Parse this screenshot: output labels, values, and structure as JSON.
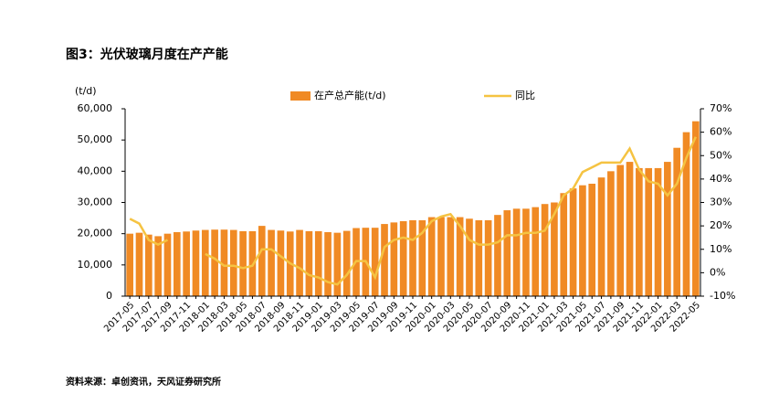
{
  "chart_data": {
    "type": "bar-line",
    "title": "图3：光伏玻璃月度在产产能",
    "y_label": "(t/d)",
    "source": "资料来源：卓创资讯，天风证券研究所",
    "categories": [
      "2017-05",
      null,
      "2017-07",
      null,
      "2017-09",
      null,
      "2017-11",
      null,
      "2018-01",
      null,
      "2018-03",
      null,
      "2018-05",
      null,
      "2018-07",
      null,
      "2018-09",
      null,
      "2018-11",
      null,
      "2019-01",
      null,
      "2019-03",
      null,
      "2019-05",
      null,
      "2019-07",
      null,
      "2019-09",
      null,
      "2019-11",
      null,
      "2020-01",
      null,
      "2020-03",
      null,
      "2020-05",
      null,
      "2020-07",
      null,
      "2020-09",
      null,
      "2020-11",
      null,
      "2021-01",
      null,
      "2021-03",
      null,
      "2021-05",
      null,
      "2021-07",
      null,
      "2021-09",
      null,
      "2021-11",
      null,
      "2022-01",
      null,
      "2022-03",
      null,
      "2022-05"
    ],
    "series": [
      {
        "name": "在产总产能(t/d)",
        "kind": "bar",
        "color": "#f08a24",
        "values": [
          20000,
          20300,
          19700,
          19200,
          20000,
          20500,
          20700,
          21000,
          21200,
          21300,
          21300,
          21200,
          20800,
          20800,
          22500,
          21200,
          21000,
          20700,
          21200,
          20800,
          20800,
          20500,
          20300,
          20900,
          21800,
          21900,
          21900,
          23100,
          23600,
          24000,
          24300,
          24300,
          25300,
          25300,
          25300,
          25300,
          24800,
          24300,
          24300,
          26000,
          27500,
          28000,
          28000,
          28500,
          29500,
          30000,
          33000,
          34500,
          35500,
          36000,
          38000,
          40000,
          42000,
          43000,
          41000,
          41000,
          41000,
          43000,
          47500,
          52500,
          56000
        ]
      },
      {
        "name": "同比",
        "kind": "line",
        "axis": "y2",
        "color": "#f5c342",
        "values": [
          23,
          21,
          14,
          12,
          14,
          null,
          null,
          null,
          8,
          6,
          3,
          3,
          2,
          3,
          10,
          10,
          7,
          4,
          2,
          -1,
          -2,
          -4,
          -5,
          -1,
          5,
          5,
          -2,
          11,
          14,
          15,
          14,
          17,
          22,
          24,
          25,
          20,
          14,
          12,
          12,
          13,
          16,
          16,
          17,
          17,
          18,
          25,
          33,
          36,
          43,
          45,
          47,
          47,
          47,
          53,
          44,
          39,
          38,
          33,
          38,
          49,
          58
        ]
      }
    ],
    "ylim": [
      0,
      60000
    ],
    "yticks": [
      0,
      {
        "value": 10000,
        "label": "10,000"
      },
      {
        "value": 20000,
        "label": "20,000"
      },
      {
        "value": 30000,
        "label": "30,000"
      },
      {
        "value": 40000,
        "label": "40,000"
      },
      {
        "value": 50000,
        "label": "50,000"
      },
      {
        "value": 60000,
        "label": "60,000"
      }
    ],
    "y2lim": [
      -10,
      70
    ],
    "y2ticks": [
      {
        "value": -10,
        "label": "-10%"
      },
      {
        "value": 0,
        "label": "0%"
      },
      {
        "value": 10,
        "label": "10%"
      },
      {
        "value": 20,
        "label": "20%"
      },
      {
        "value": 30,
        "label": "30%"
      },
      {
        "value": 40,
        "label": "40%"
      },
      {
        "value": 50,
        "label": "50%"
      },
      {
        "value": 60,
        "label": "60%"
      },
      {
        "value": 70,
        "label": "70%"
      }
    ],
    "legend": "top"
  }
}
